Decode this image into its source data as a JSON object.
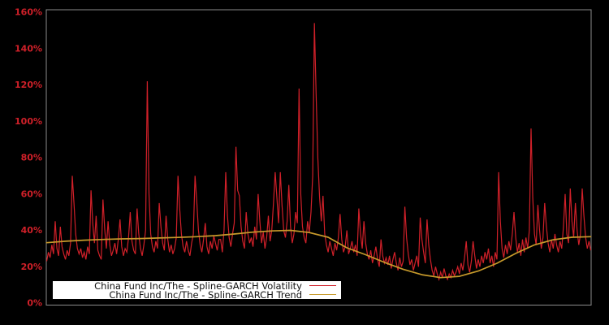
{
  "figure": {
    "background_color": "#000000",
    "plot_border_color": "#8c8c8c",
    "tick_label_color": "#d02029"
  },
  "legend": {
    "background_color": "#ffffff",
    "entries": [
      {
        "label": "China Fund Inc/The - Spline-GARCH Volatility",
        "color": "#d02029"
      },
      {
        "label": "China Fund Inc/The - Spline-GARCH Trend",
        "color": "#c79a2b"
      }
    ]
  },
  "chart_data": {
    "type": "line",
    "title": "",
    "xlabel": "",
    "ylabel": "",
    "ylim": [
      0,
      160
    ],
    "ytick_step": 20,
    "yticks": [
      "0%",
      "20%",
      "40%",
      "60%",
      "80%",
      "100%",
      "120%",
      "140%",
      "160%"
    ],
    "xticks": [],
    "grid": false,
    "legend_position": "lower-left-inside",
    "series": [
      {
        "name": "China Fund Inc/The - Spline-GARCH Volatility",
        "color": "#d02029",
        "unit": "%",
        "values": [
          23,
          28,
          25,
          32,
          27,
          45,
          30,
          26,
          42,
          31,
          27,
          24,
          29,
          26,
          33,
          70,
          55,
          38,
          30,
          27,
          30,
          25,
          28,
          24,
          31,
          27,
          62,
          44,
          33,
          48,
          29,
          26,
          24,
          57,
          41,
          30,
          45,
          32,
          26,
          29,
          33,
          27,
          35,
          46,
          31,
          26,
          30,
          28,
          36,
          50,
          34,
          29,
          27,
          52,
          38,
          30,
          26,
          32,
          40,
          122,
          60,
          38,
          31,
          28,
          34,
          30,
          55,
          42,
          33,
          29,
          48,
          35,
          28,
          32,
          27,
          30,
          36,
          70,
          52,
          38,
          31,
          28,
          34,
          29,
          26,
          33,
          38,
          70,
          56,
          40,
          32,
          28,
          35,
          44,
          31,
          27,
          34,
          30,
          37,
          33,
          29,
          35,
          35,
          28,
          40,
          72,
          48,
          36,
          31,
          38,
          44,
          86,
          62,
          59,
          42,
          34,
          30,
          50,
          38,
          33,
          36,
          31,
          42,
          35,
          60,
          45,
          33,
          39,
          30,
          36,
          48,
          34,
          40,
          55,
          72,
          58,
          44,
          72,
          54,
          40,
          36,
          45,
          65,
          42,
          33,
          38,
          50,
          44,
          118,
          60,
          42,
          36,
          33,
          45,
          39,
          50,
          70,
          154,
          115,
          80,
          58,
          45,
          59,
          38,
          32,
          28,
          34,
          30,
          26,
          33,
          29,
          36,
          49,
          35,
          28,
          31,
          40,
          27,
          30,
          34,
          28,
          32,
          26,
          52,
          38,
          30,
          45,
          33,
          27,
          24,
          29,
          22,
          26,
          31,
          24,
          20,
          35,
          26,
          22,
          25,
          21,
          26,
          19,
          24,
          28,
          22,
          18,
          25,
          20,
          23,
          53,
          36,
          27,
          21,
          24,
          18,
          22,
          26,
          20,
          47,
          35,
          28,
          22,
          46,
          32,
          24,
          18,
          15,
          20,
          16,
          13,
          17,
          14,
          19,
          15,
          13,
          16,
          14,
          18,
          15,
          17,
          20,
          16,
          22,
          18,
          25,
          34,
          21,
          17,
          23,
          34,
          26,
          19,
          24,
          20,
          26,
          22,
          28,
          24,
          30,
          22,
          26,
          20,
          28,
          24,
          72,
          45,
          30,
          25,
          32,
          27,
          34,
          29,
          38,
          50,
          36,
          28,
          33,
          26,
          35,
          28,
          36,
          30,
          40,
          96,
          58,
          38,
          32,
          54,
          40,
          30,
          36,
          55,
          42,
          33,
          28,
          35,
          30,
          38,
          32,
          28,
          34,
          30,
          42,
          60,
          38,
          33,
          63,
          45,
          36,
          55,
          40,
          32,
          38,
          63,
          48,
          36,
          30,
          34,
          29
        ]
      },
      {
        "name": "China Fund Inc/The - Spline-GARCH Trend",
        "color": "#c79a2b",
        "unit": "%",
        "values": [
          33.2,
          34.0,
          34.6,
          35.0,
          35.3,
          35.5,
          35.8,
          36.1,
          36.5,
          37.1,
          38.0,
          39.0,
          39.7,
          40.0,
          38.8,
          36.2,
          30.4,
          26.6,
          22.4,
          18.6,
          15.6,
          14.0,
          14.7,
          17.6,
          21.9,
          27.3,
          32.0,
          34.8,
          36.2,
          36.5
        ]
      }
    ]
  }
}
